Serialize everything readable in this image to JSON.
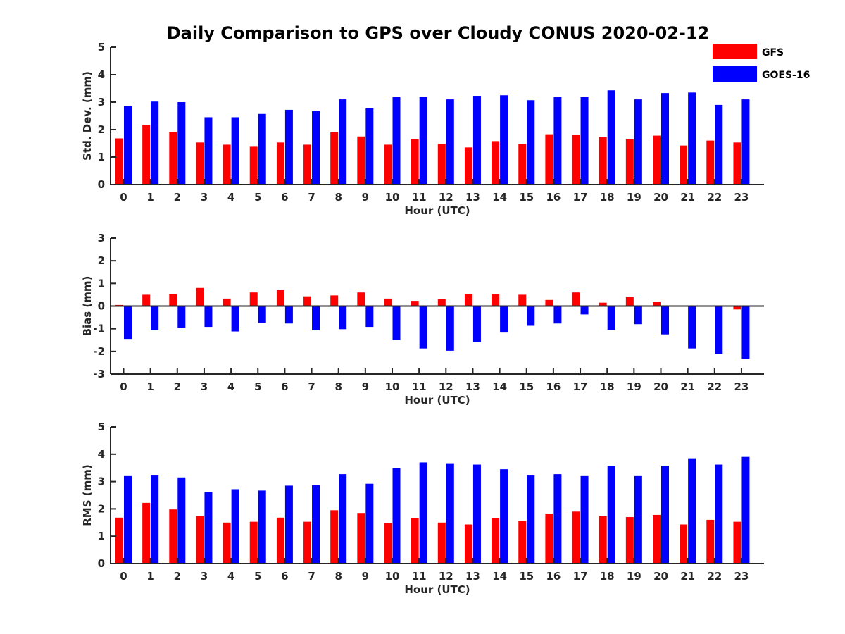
{
  "figure": {
    "title": "Daily Comparison to GPS over Cloudy CONUS 2020-02-12"
  },
  "legend": {
    "placement": "top-right",
    "items": [
      {
        "name": "GFS",
        "color": "#ff0000"
      },
      {
        "name": "GOES-16",
        "color": "#0000ff"
      }
    ]
  },
  "chart_data": [
    {
      "type": "bar",
      "xlabel": "Hour (UTC)",
      "ylabel": "Std. Dev. (mm)",
      "ylim": [
        0,
        5
      ],
      "yticks": [
        0,
        1,
        2,
        3,
        4,
        5
      ],
      "zero_line": false,
      "categories": [
        "0",
        "1",
        "2",
        "3",
        "4",
        "5",
        "6",
        "7",
        "8",
        "9",
        "10",
        "11",
        "12",
        "13",
        "14",
        "15",
        "16",
        "17",
        "18",
        "19",
        "20",
        "21",
        "22",
        "23"
      ],
      "series": [
        {
          "name": "GFS",
          "color": "#ff0000",
          "values": [
            1.68,
            2.17,
            1.9,
            1.53,
            1.45,
            1.4,
            1.53,
            1.45,
            1.9,
            1.75,
            1.45,
            1.65,
            1.48,
            1.35,
            1.58,
            1.48,
            1.83,
            1.8,
            1.72,
            1.65,
            1.78,
            1.42,
            1.6,
            1.53
          ]
        },
        {
          "name": "GOES-16",
          "color": "#0000ff",
          "values": [
            2.85,
            3.02,
            3.0,
            2.45,
            2.45,
            2.57,
            2.72,
            2.67,
            3.1,
            2.77,
            3.18,
            3.18,
            3.1,
            3.23,
            3.25,
            3.07,
            3.18,
            3.18,
            3.43,
            3.1,
            3.33,
            3.35,
            2.9,
            3.1
          ]
        }
      ]
    },
    {
      "type": "bar",
      "xlabel": "Hour (UTC)",
      "ylabel": "Bias (mm)",
      "ylim": [
        -3,
        3
      ],
      "yticks": [
        -3,
        -2,
        -1,
        0,
        1,
        2,
        3
      ],
      "zero_line": true,
      "categories": [
        "0",
        "1",
        "2",
        "3",
        "4",
        "5",
        "6",
        "7",
        "8",
        "9",
        "10",
        "11",
        "12",
        "13",
        "14",
        "15",
        "16",
        "17",
        "18",
        "19",
        "20",
        "21",
        "22",
        "23"
      ],
      "series": [
        {
          "name": "GFS",
          "color": "#ff0000",
          "values": [
            0.05,
            0.5,
            0.53,
            0.8,
            0.33,
            0.6,
            0.7,
            0.43,
            0.47,
            0.6,
            0.33,
            0.23,
            0.3,
            0.53,
            0.53,
            0.5,
            0.27,
            0.6,
            0.15,
            0.4,
            0.18,
            -0.03,
            0.0,
            -0.15
          ]
        },
        {
          "name": "GOES-16",
          "color": "#0000ff",
          "values": [
            -1.45,
            -1.07,
            -0.95,
            -0.92,
            -1.12,
            -0.73,
            -0.77,
            -1.07,
            -1.02,
            -0.92,
            -1.5,
            -1.87,
            -1.97,
            -1.6,
            -1.17,
            -0.87,
            -0.77,
            -0.37,
            -1.05,
            -0.8,
            -1.25,
            -1.87,
            -2.1,
            -2.33
          ]
        }
      ]
    },
    {
      "type": "bar",
      "xlabel": "Hour (UTC)",
      "ylabel": "RMS (mm)",
      "ylim": [
        0,
        5
      ],
      "yticks": [
        0,
        1,
        2,
        3,
        4,
        5
      ],
      "zero_line": false,
      "categories": [
        "0",
        "1",
        "2",
        "3",
        "4",
        "5",
        "6",
        "7",
        "8",
        "9",
        "10",
        "11",
        "12",
        "13",
        "14",
        "15",
        "16",
        "17",
        "18",
        "19",
        "20",
        "21",
        "22",
        "23"
      ],
      "series": [
        {
          "name": "GFS",
          "color": "#ff0000",
          "values": [
            1.68,
            2.22,
            1.98,
            1.73,
            1.5,
            1.53,
            1.68,
            1.53,
            1.95,
            1.85,
            1.48,
            1.65,
            1.5,
            1.43,
            1.65,
            1.55,
            1.83,
            1.9,
            1.73,
            1.7,
            1.78,
            1.43,
            1.6,
            1.53
          ]
        },
        {
          "name": "GOES-16",
          "color": "#0000ff",
          "values": [
            3.2,
            3.22,
            3.15,
            2.62,
            2.72,
            2.67,
            2.85,
            2.87,
            3.27,
            2.92,
            3.5,
            3.7,
            3.67,
            3.62,
            3.45,
            3.22,
            3.27,
            3.2,
            3.58,
            3.2,
            3.58,
            3.85,
            3.62,
            3.9
          ]
        }
      ]
    }
  ]
}
